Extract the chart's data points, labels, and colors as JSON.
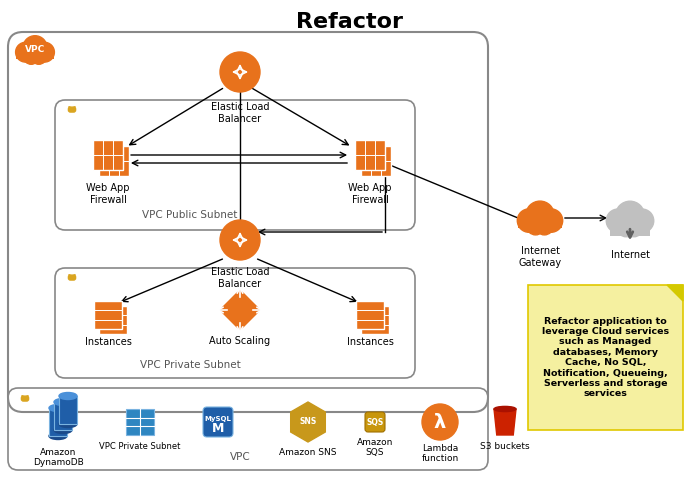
{
  "title": "Refactor",
  "title_fontsize": 16,
  "title_fontweight": "bold",
  "bg_color": "#ffffff",
  "note_text": "Refactor application to\nleverage Cloud services\nsuch as Managed\ndatabases, Memory\nCache, No SQL,\nNotification, Queueing,\nServerless and storage\nservices",
  "note_bg": "#f5f0a0",
  "note_border": "#e0c800",
  "vpc_label": "VPC",
  "vpc_cloud_color": "#E8721C",
  "orange": "#E8721C",
  "light_orange": "#F5A623",
  "blue_dark": "#1F5EA8",
  "blue_mid": "#2E86C1",
  "gray_cloud": "#C0C0C0",
  "red_bucket": "#CC2200",
  "mysql_blue": "#1F5EA8",
  "gold": "#B8860B",
  "public_subnet_label": "VPC Public Subnet",
  "private_subnet_label": "VPC Private Subnet",
  "bottom_vpc_label": "VPC",
  "labels": {
    "elb_top": "Elastic Load\nBalancer",
    "waf_left": "Web App\nFirewall",
    "waf_right": "Web App\nFirewall",
    "elb_bottom": "Elastic Load\nBalancer",
    "instances_left": "Instances",
    "auto_scaling": "Auto Scaling",
    "instances_right": "Instances",
    "internet_gw": "Internet\nGateway",
    "internet": "Internet",
    "dynamodb": "Amazon\nDynamoDB",
    "vpc_private": "VPC Private Subnet",
    "sns": "Amazon SNS",
    "sqs": "Amazon\nSQS",
    "lambda": "Lambda\nfunction",
    "s3": "S3 buckets"
  }
}
